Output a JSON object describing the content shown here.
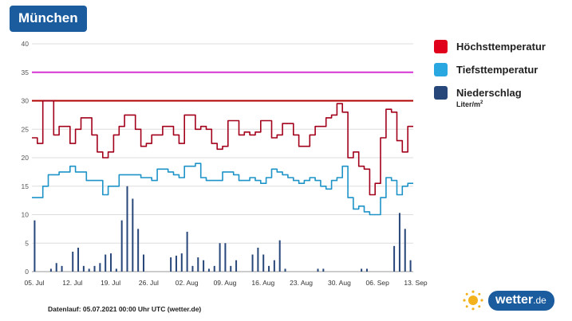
{
  "header": {
    "title": "München"
  },
  "legend": {
    "items": [
      {
        "label": "Höchsttemperatur",
        "color": "#e0001b"
      },
      {
        "label": "Tiefsttemperatur",
        "color": "#29a7e1"
      },
      {
        "label": "Niederschlag",
        "color": "#27467a",
        "sub": "Liter/m",
        "sub_sup": "2"
      }
    ]
  },
  "footer": {
    "note": "Datenlauf: 05.07.2021 00:00 Uhr UTC (wetter.de)"
  },
  "brand": {
    "name": "wetter",
    "tld": ".de"
  },
  "chart_data": {
    "type": "line",
    "title": "München",
    "ylim": [
      0,
      40
    ],
    "yticks": [
      0,
      5,
      10,
      15,
      20,
      25,
      30,
      35,
      40
    ],
    "x_tick_labels": [
      "05. Jul",
      "12. Jul",
      "19. Jul",
      "26. Jul",
      "02. Aug",
      "09. Aug",
      "16. Aug",
      "23. Aug",
      "30. Aug",
      "06. Sep",
      "13. Sep"
    ],
    "days": 70,
    "reference_lines": [
      {
        "value": 30,
        "color": "#b00000"
      },
      {
        "value": 35,
        "color": "#d633d6"
      }
    ],
    "series": [
      {
        "name": "Höchsttemperatur",
        "kind": "step-line",
        "color": "#a3001c",
        "values": [
          23.5,
          22.5,
          30,
          30,
          24,
          25.5,
          25.5,
          22.5,
          25,
          27,
          27,
          24,
          21,
          20,
          21,
          24,
          25.5,
          27.5,
          27.5,
          25,
          22,
          22.5,
          24,
          24,
          25.5,
          25.5,
          24,
          22.5,
          27.5,
          27.5,
          25,
          25.5,
          25,
          22.5,
          21.5,
          22,
          26.5,
          26.5,
          24,
          24.5,
          24,
          24.5,
          26.5,
          26.5,
          23.5,
          24,
          26,
          26,
          24,
          22,
          22,
          24,
          25.5,
          25.5,
          27,
          27.5,
          29.5,
          28,
          20,
          21,
          18.5,
          18,
          13.5,
          15.5,
          23.5,
          28.5,
          28,
          23,
          21,
          25.5
        ]
      },
      {
        "name": "Tiefsttemperatur",
        "kind": "step-line",
        "color": "#1d93c8",
        "values": [
          13,
          13,
          15,
          17,
          17,
          17.5,
          17.5,
          18.5,
          17.5,
          17.5,
          16,
          16,
          16,
          13.5,
          15,
          15,
          17,
          17,
          17,
          17,
          16.5,
          16.5,
          16,
          18,
          18,
          17.5,
          17,
          16.5,
          18.5,
          18.5,
          19,
          16.5,
          16,
          16,
          16,
          17.5,
          17.5,
          17,
          16,
          16,
          16.5,
          16,
          15.5,
          16.5,
          18,
          17.5,
          17,
          16.5,
          16,
          15.5,
          16,
          16.5,
          16,
          15,
          14.5,
          16,
          16.5,
          18.5,
          13,
          11,
          11.5,
          10.5,
          10,
          10,
          13,
          16.5,
          16,
          13.5,
          15,
          15.5
        ]
      },
      {
        "name": "Niederschlag",
        "kind": "bar",
        "color": "#27467a",
        "values": [
          9,
          0,
          0,
          0.5,
          1.5,
          1,
          0,
          3.5,
          4.2,
          1,
          0.5,
          1,
          1.5,
          3,
          3.2,
          0.5,
          9,
          15,
          12.8,
          7.5,
          3,
          0,
          0,
          0,
          0,
          2.5,
          2.8,
          3.2,
          7,
          1,
          2.5,
          2,
          0.5,
          1,
          5,
          5,
          1,
          2,
          0,
          0,
          3,
          4.2,
          3,
          1,
          2,
          5.5,
          0.5,
          0,
          0,
          0,
          0,
          0,
          0.5,
          0.5,
          0,
          0,
          0,
          0,
          0,
          0,
          0.5,
          0.5,
          0,
          0,
          0,
          0,
          4.5,
          10.3,
          7.5,
          2
        ]
      }
    ]
  }
}
